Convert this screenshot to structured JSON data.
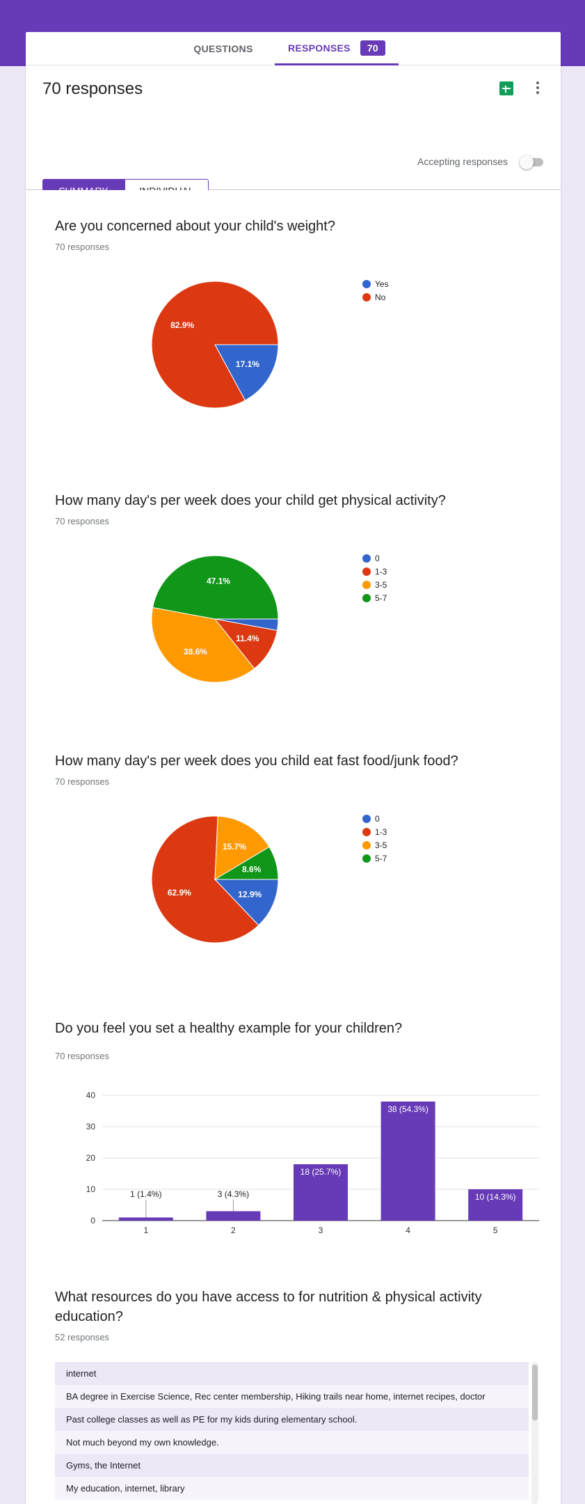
{
  "tabs": {
    "questions": "QUESTIONS",
    "responses": "RESPONSES",
    "responses_count": "70"
  },
  "header": {
    "title": "70 responses",
    "accepting_label": "Accepting responses",
    "accepting_on": false
  },
  "view_toggle": {
    "summary": "SUMMARY",
    "individual": "INDIVIDUAL"
  },
  "icons": {
    "sheets": "sheets-icon",
    "more": "more-vert-icon"
  },
  "colors": {
    "accent": "#673ab7",
    "blue": "#3366cc",
    "red": "#dc3912",
    "orange": "#ff9900",
    "green": "#109618"
  },
  "questions": [
    {
      "title": "Are you concerned about your child's weight?",
      "count": "70 responses"
    },
    {
      "title": "How many day's per week does your child get physical activity?",
      "count": "70 responses"
    },
    {
      "title": "How many day's per week does you child eat fast food/junk food?",
      "count": "70 responses"
    },
    {
      "title": "Do you feel you set a healthy example for your children?",
      "count": "70 responses"
    },
    {
      "title": "What resources do you have access to for nutrition & physical activity education?",
      "count": "52 responses"
    }
  ],
  "chart_data": [
    {
      "type": "pie",
      "labels": [
        "Yes",
        "No"
      ],
      "values": [
        17.1,
        82.9
      ],
      "value_labels": [
        "17.1%",
        "82.9%"
      ],
      "colors": [
        "#3366cc",
        "#dc3912"
      ],
      "legend": "right"
    },
    {
      "type": "pie",
      "labels": [
        "0",
        "1-3",
        "3-5",
        "5-7"
      ],
      "values": [
        2.9,
        11.4,
        38.6,
        47.1
      ],
      "value_labels": [
        "",
        "11.4%",
        "38.6%",
        "47.1%"
      ],
      "colors": [
        "#3366cc",
        "#dc3912",
        "#ff9900",
        "#109618"
      ],
      "legend": "right"
    },
    {
      "type": "pie",
      "labels": [
        "0",
        "1-3",
        "3-5",
        "5-7"
      ],
      "values": [
        12.9,
        62.9,
        15.7,
        8.6
      ],
      "value_labels": [
        "12.9%",
        "62.9%",
        "15.7%",
        "8.6%"
      ],
      "colors": [
        "#3366cc",
        "#dc3912",
        "#ff9900",
        "#109618"
      ],
      "legend": "right"
    },
    {
      "type": "bar",
      "categories": [
        "1",
        "2",
        "3",
        "4",
        "5"
      ],
      "values": [
        1,
        3,
        18,
        38,
        10
      ],
      "value_labels": [
        "1 (1.4%)",
        "3 (4.3%)",
        "18 (25.7%)",
        "38 (54.3%)",
        "10 (14.3%)"
      ],
      "ylim": [
        0,
        40
      ],
      "yticks": [
        0,
        10,
        20,
        30,
        40
      ],
      "color": "#673ab7",
      "grid": true
    }
  ],
  "text_responses": [
    "internet",
    "BA degree in Exercise Science, Rec center membership, Hiking trails near home, internet recipes, doctor",
    "Past college classes as well as PE for my kids during elementary school.",
    "Not much beyond my own knowledge.",
    "Gyms, the Internet",
    "My education, internet, library"
  ]
}
